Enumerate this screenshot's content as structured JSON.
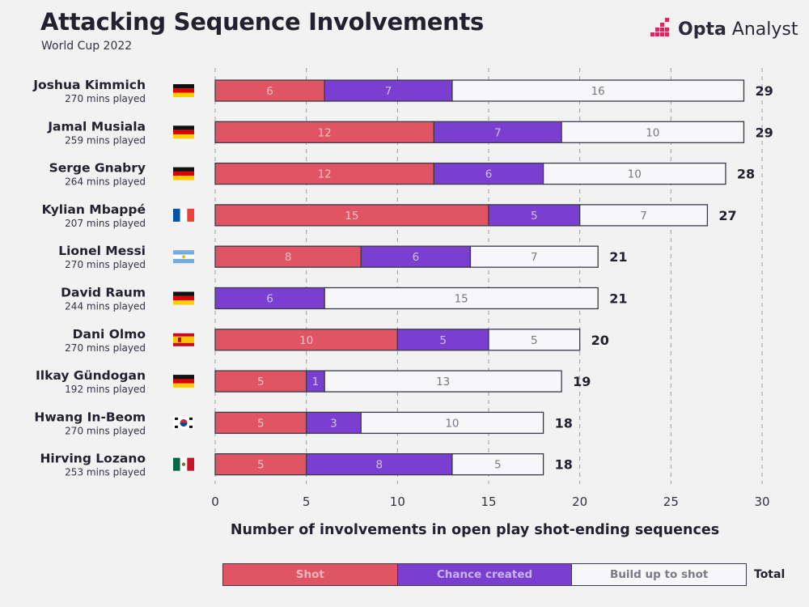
{
  "header": {
    "title": "Attacking Sequence Involvements",
    "subtitle": "World Cup 2022",
    "brand_bold": "Opta",
    "brand_light": " Analyst"
  },
  "legend": {
    "shot_label": "Shot",
    "chance_label": "Chance created",
    "build_label": "Build up to shot",
    "total_label": "Total"
  },
  "colors": {
    "shot": "#e05463",
    "chance": "#7a3fd1",
    "build": "#f7f7f9",
    "outline": "#3a3a48"
  },
  "chart_data": {
    "type": "bar",
    "orientation": "horizontal",
    "stacked": true,
    "xlabel": "Number of involvements in open play shot-ending sequences",
    "xlim": [
      0,
      30
    ],
    "xticks": [
      0,
      5,
      10,
      15,
      20,
      25,
      30
    ],
    "grid": "vertical dashed",
    "legend_position": "bottom",
    "series": [
      {
        "name": "Shot",
        "values": [
          6,
          12,
          12,
          15,
          8,
          0,
          10,
          5,
          5,
          5
        ]
      },
      {
        "name": "Chance created",
        "values": [
          7,
          7,
          6,
          5,
          6,
          6,
          5,
          1,
          3,
          8
        ]
      },
      {
        "name": "Build up to shot",
        "values": [
          16,
          10,
          10,
          7,
          7,
          15,
          5,
          13,
          10,
          5
        ]
      }
    ],
    "totals": [
      29,
      29,
      28,
      27,
      21,
      21,
      20,
      19,
      18,
      18
    ],
    "players": [
      {
        "name": "Joshua Kimmich",
        "minutes": "270 mins played",
        "flag": "germany-flag"
      },
      {
        "name": "Jamal Musiala",
        "minutes": "259 mins played",
        "flag": "germany-flag"
      },
      {
        "name": "Serge Gnabry",
        "minutes": "264 mins played",
        "flag": "germany-flag"
      },
      {
        "name": "Kylian Mbappé",
        "minutes": "207 mins played",
        "flag": "france-flag"
      },
      {
        "name": "Lionel Messi",
        "minutes": "270 mins played",
        "flag": "argentina-flag"
      },
      {
        "name": "David Raum",
        "minutes": "244 mins played",
        "flag": "germany-flag"
      },
      {
        "name": "Dani Olmo",
        "minutes": "270 mins played",
        "flag": "spain-flag"
      },
      {
        "name": "Ilkay Gündogan",
        "minutes": "192 mins played",
        "flag": "germany-flag"
      },
      {
        "name": "Hwang In-Beom",
        "minutes": "270 mins played",
        "flag": "south-korea-flag"
      },
      {
        "name": "Hirving Lozano",
        "minutes": "253 mins played",
        "flag": "mexico-flag"
      }
    ]
  }
}
